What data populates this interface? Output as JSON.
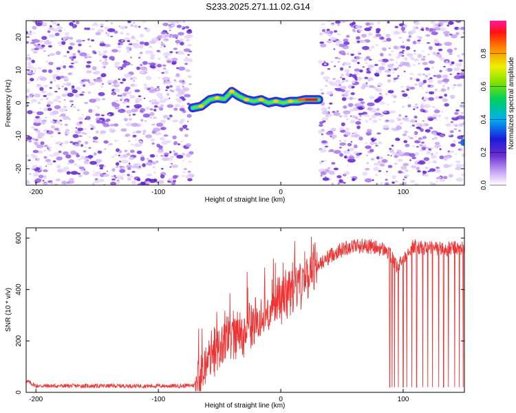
{
  "title": "S233.2025.271.11.02.G14",
  "chart_data": [
    {
      "type": "heatmap",
      "title": "S233.2025.271.11.02.G14",
      "xlabel": "Height of straight line (km)",
      "ylabel": "Frequency (Hz)",
      "xlim": [
        -208,
        150
      ],
      "ylim": [
        -25,
        25
      ],
      "xticks": [
        -200,
        -100,
        0,
        100
      ],
      "yticks": [
        20,
        10,
        0,
        -10,
        -20
      ],
      "colorbar": {
        "label": "Normalized spectral amplitude",
        "range": [
          0,
          1
        ],
        "ticks": [
          "0.0",
          "0.2",
          "0.4",
          "0.6",
          "0.8"
        ]
      },
      "empty_region_x": [
        -72,
        31
      ],
      "signal_trace": {
        "x": [
          -72,
          -65,
          -58,
          -52,
          -46,
          -40,
          -34,
          -28,
          -22,
          -16,
          -10,
          -4,
          2,
          8,
          14,
          20,
          26,
          31
        ],
        "freq": [
          -1.5,
          -1.0,
          1.0,
          1.5,
          1.2,
          3.5,
          2.0,
          1.0,
          0.5,
          1.0,
          0.0,
          0.5,
          0.0,
          0.5,
          0.5,
          1.0,
          1.0,
          1.0
        ]
      }
    },
    {
      "type": "line",
      "xlabel": "Height of straight line (km)",
      "ylabel": "SNR (10 * v/v)",
      "xlim": [
        -208,
        150
      ],
      "ylim": [
        0,
        640
      ],
      "xticks": [
        -200,
        -100,
        0,
        100
      ],
      "yticks": [
        0,
        200,
        400,
        600
      ],
      "series": [
        {
          "name": "SNR",
          "color": "#ee3333",
          "x": [
            -208,
            -200,
            -180,
            -160,
            -140,
            -120,
            -100,
            -80,
            -70,
            -65,
            -60,
            -55,
            -50,
            -45,
            -40,
            -35,
            -30,
            -25,
            -20,
            -15,
            -10,
            -5,
            0,
            5,
            10,
            15,
            20,
            25,
            30,
            35,
            40,
            45,
            50,
            55,
            60,
            65,
            70,
            75,
            80,
            85,
            90,
            95,
            100,
            105,
            110,
            115,
            120,
            125,
            130,
            135,
            140,
            145,
            150
          ],
          "values": [
            45,
            25,
            25,
            25,
            25,
            25,
            25,
            25,
            28,
            40,
            120,
            150,
            170,
            190,
            210,
            230,
            250,
            260,
            280,
            300,
            320,
            340,
            370,
            390,
            410,
            430,
            450,
            470,
            490,
            510,
            530,
            545,
            555,
            565,
            570,
            570,
            570,
            565,
            560,
            555,
            530,
            480,
            520,
            560,
            570,
            560,
            565,
            560,
            560,
            555,
            560,
            560,
            560
          ]
        }
      ],
      "dropouts_x": [
        89,
        91,
        93,
        96,
        100,
        103,
        107,
        111,
        116,
        120,
        124,
        129,
        133,
        137,
        142,
        146,
        149
      ]
    }
  ]
}
